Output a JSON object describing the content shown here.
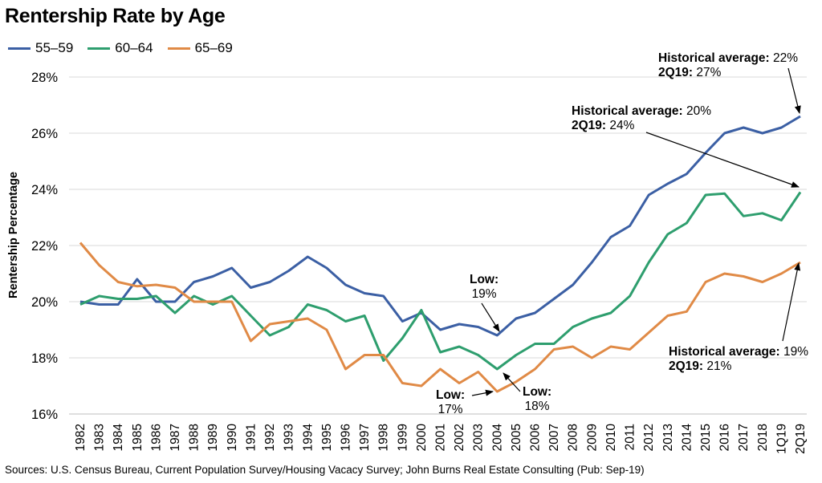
{
  "chart_data": {
    "type": "line",
    "title": "Rentership Rate by Age",
    "ylabel": "Rentership Percentage",
    "xlabel": "",
    "ylim": [
      16,
      28
    ],
    "yticks": [
      "16%",
      "18%",
      "20%",
      "22%",
      "24%",
      "26%",
      "28%"
    ],
    "ytick_values": [
      16,
      18,
      20,
      22,
      24,
      26,
      28
    ],
    "grid": true,
    "legend": "top-left",
    "categories": [
      "1982",
      "1983",
      "1984",
      "1985",
      "1986",
      "1987",
      "1988",
      "1989",
      "1990",
      "1991",
      "1992",
      "1993",
      "1994",
      "1995",
      "1996",
      "1997",
      "1998",
      "1999",
      "2000",
      "2001",
      "2002",
      "2003",
      "2004",
      "2005",
      "2006",
      "2007",
      "2008",
      "2009",
      "2010",
      "2011",
      "2012",
      "2013",
      "2014",
      "2015",
      "2016",
      "2017",
      "2018",
      "1Q19",
      "2Q19"
    ],
    "series": [
      {
        "name": "55–59",
        "color": "#3b5fa4",
        "values": [
          20.0,
          19.9,
          19.9,
          20.8,
          20.0,
          20.0,
          20.7,
          20.9,
          21.2,
          20.5,
          20.7,
          21.1,
          21.6,
          21.2,
          20.6,
          20.3,
          20.2,
          19.3,
          19.6,
          19.0,
          19.2,
          19.1,
          18.8,
          19.4,
          19.6,
          20.1,
          20.6,
          21.4,
          22.3,
          22.7,
          23.8,
          24.2,
          24.55,
          25.3,
          26.0,
          26.2,
          26.0,
          26.2,
          26.6
        ]
      },
      {
        "name": "60–64",
        "color": "#2e9e6e",
        "values": [
          19.9,
          20.2,
          20.1,
          20.1,
          20.2,
          19.6,
          20.2,
          19.9,
          20.2,
          19.5,
          18.8,
          19.1,
          19.9,
          19.7,
          19.3,
          19.5,
          17.9,
          18.7,
          19.7,
          18.2,
          18.4,
          18.1,
          17.6,
          18.1,
          18.5,
          18.5,
          19.1,
          19.4,
          19.6,
          20.2,
          21.4,
          22.4,
          22.8,
          23.8,
          23.85,
          23.05,
          23.15,
          22.9,
          23.9
        ]
      },
      {
        "name": "65–69",
        "color": "#e08a46",
        "values": [
          22.1,
          21.3,
          20.7,
          20.55,
          20.6,
          20.5,
          20.0,
          20.0,
          20.0,
          18.6,
          19.2,
          19.3,
          19.4,
          19.0,
          17.6,
          18.1,
          18.1,
          17.1,
          17.0,
          17.6,
          17.1,
          17.5,
          16.8,
          17.15,
          17.6,
          18.3,
          18.4,
          18.0,
          18.4,
          18.3,
          18.9,
          19.5,
          19.65,
          20.7,
          21.0,
          20.9,
          20.7,
          21.0,
          21.4
        ]
      }
    ],
    "annotations": [
      {
        "bold": "Historical average:",
        "text": " 22%",
        "bold2": "2Q19:",
        "text2": " 27%"
      },
      {
        "bold": "Historical average:",
        "text": " 20%",
        "bold2": "2Q19:",
        "text2": " 24%"
      },
      {
        "bold": "Historical average:",
        "text": " 19%",
        "bold2": "2Q19:",
        "text2": " 21%"
      },
      {
        "bold": "Low:",
        "text2": "19%"
      },
      {
        "bold": "Low:",
        "text2": "17%"
      },
      {
        "bold": "Low:",
        "text2": "18%"
      }
    ],
    "source": "Sources: U.S. Census Bureau, Current Population Survey/Housing Vacacy Survey; John Burns Real Estate Consulting (Pub: Sep-19)"
  }
}
